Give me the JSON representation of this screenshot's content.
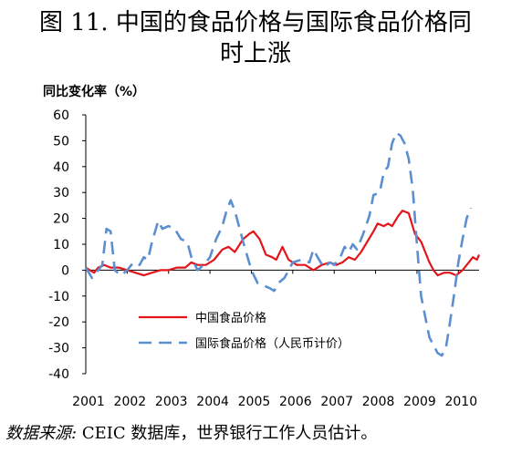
{
  "header": {
    "title_line1": "图 11. 中国的食品价格与国际食品价格同",
    "title_line2": "时上涨"
  },
  "footer": {
    "source_label": "数据来源:",
    "source_text": "CEIC 数据库，世界银行工作人员估计。"
  },
  "chart_data": {
    "type": "line",
    "ylabel": "同比变化率（%）",
    "xlabel": "",
    "ylim": [
      -40,
      60
    ],
    "yticks": [
      -40,
      -30,
      -20,
      -10,
      0,
      10,
      20,
      30,
      40,
      50,
      60
    ],
    "xlim": [
      2001.0,
      2010.5
    ],
    "xticks": [
      "2001",
      "2002",
      "2003",
      "2004",
      "2005",
      "2006",
      "2007",
      "2008",
      "2009",
      "2010"
    ],
    "grid": false,
    "legend_position": "bottom-center",
    "series": [
      {
        "name": "中国食品价格",
        "color": "#e3151a",
        "style": "solid",
        "points": [
          [
            2001.0,
            1
          ],
          [
            2001.1,
            0
          ],
          [
            2001.2,
            -1
          ],
          [
            2001.3,
            1
          ],
          [
            2001.45,
            2
          ],
          [
            2001.6,
            1
          ],
          [
            2001.8,
            1
          ],
          [
            2002.0,
            0
          ],
          [
            2002.2,
            -1
          ],
          [
            2002.4,
            -2
          ],
          [
            2002.6,
            -1
          ],
          [
            2002.8,
            0
          ],
          [
            2003.0,
            0
          ],
          [
            2003.2,
            1
          ],
          [
            2003.4,
            1
          ],
          [
            2003.55,
            3
          ],
          [
            2003.7,
            2
          ],
          [
            2003.9,
            2
          ],
          [
            2004.1,
            4
          ],
          [
            2004.3,
            8
          ],
          [
            2004.45,
            9
          ],
          [
            2004.6,
            7
          ],
          [
            2004.8,
            12
          ],
          [
            2004.95,
            14
          ],
          [
            2005.05,
            15
          ],
          [
            2005.2,
            12
          ],
          [
            2005.35,
            6
          ],
          [
            2005.5,
            5
          ],
          [
            2005.6,
            4
          ],
          [
            2005.75,
            9
          ],
          [
            2005.9,
            4
          ],
          [
            2006.1,
            2
          ],
          [
            2006.3,
            2
          ],
          [
            2006.5,
            0
          ],
          [
            2006.7,
            2
          ],
          [
            2006.9,
            3
          ],
          [
            2007.05,
            2
          ],
          [
            2007.2,
            3
          ],
          [
            2007.35,
            5
          ],
          [
            2007.5,
            4
          ],
          [
            2007.65,
            7
          ],
          [
            2007.8,
            11
          ],
          [
            2007.95,
            15
          ],
          [
            2008.05,
            18
          ],
          [
            2008.2,
            17
          ],
          [
            2008.3,
            18
          ],
          [
            2008.4,
            17
          ],
          [
            2008.55,
            21
          ],
          [
            2008.65,
            23
          ],
          [
            2008.8,
            22
          ],
          [
            2008.95,
            14
          ],
          [
            2009.1,
            11
          ],
          [
            2009.2,
            7
          ],
          [
            2009.3,
            3
          ],
          [
            2009.4,
            0
          ],
          [
            2009.5,
            -2
          ],
          [
            2009.65,
            -1
          ],
          [
            2009.8,
            -1
          ],
          [
            2009.95,
            -2
          ],
          [
            2010.1,
            0
          ],
          [
            2010.25,
            3
          ],
          [
            2010.35,
            5
          ],
          [
            2010.45,
            4
          ],
          [
            2010.5,
            6
          ]
        ]
      },
      {
        "name": "国际食品价格（人民币计价）",
        "color": "#5b8fd0",
        "style": "dashed",
        "points": [
          [
            2001.0,
            1
          ],
          [
            2001.15,
            -3
          ],
          [
            2001.3,
            0
          ],
          [
            2001.4,
            2
          ],
          [
            2001.5,
            16
          ],
          [
            2001.6,
            15
          ],
          [
            2001.7,
            0
          ],
          [
            2001.85,
            -2
          ],
          [
            2002.0,
            0
          ],
          [
            2002.15,
            3
          ],
          [
            2002.3,
            2
          ],
          [
            2002.4,
            5
          ],
          [
            2002.5,
            4
          ],
          [
            2002.6,
            11
          ],
          [
            2002.75,
            19
          ],
          [
            2002.85,
            16
          ],
          [
            2003.0,
            17
          ],
          [
            2003.15,
            16
          ],
          [
            2003.3,
            12
          ],
          [
            2003.45,
            11
          ],
          [
            2003.55,
            5
          ],
          [
            2003.7,
            0
          ],
          [
            2003.85,
            2
          ],
          [
            2004.0,
            5
          ],
          [
            2004.15,
            12
          ],
          [
            2004.3,
            17
          ],
          [
            2004.4,
            23
          ],
          [
            2004.5,
            27
          ],
          [
            2004.6,
            23
          ],
          [
            2004.7,
            17
          ],
          [
            2004.8,
            11
          ],
          [
            2005.0,
            0
          ],
          [
            2005.15,
            -5
          ],
          [
            2005.3,
            -6
          ],
          [
            2005.45,
            -7
          ],
          [
            2005.55,
            -8
          ],
          [
            2005.65,
            -5
          ],
          [
            2005.8,
            -3
          ],
          [
            2006.0,
            3
          ],
          [
            2006.2,
            4
          ],
          [
            2006.4,
            3
          ],
          [
            2006.5,
            8
          ],
          [
            2006.6,
            5
          ],
          [
            2006.75,
            1
          ],
          [
            2006.9,
            3
          ],
          [
            2007.0,
            2
          ],
          [
            2007.15,
            5
          ],
          [
            2007.25,
            9
          ],
          [
            2007.35,
            7
          ],
          [
            2007.45,
            10
          ],
          [
            2007.55,
            8
          ],
          [
            2007.7,
            14
          ],
          [
            2007.85,
            21
          ],
          [
            2007.95,
            29
          ],
          [
            2008.1,
            30
          ],
          [
            2008.2,
            38
          ],
          [
            2008.3,
            40
          ],
          [
            2008.4,
            49
          ],
          [
            2008.5,
            53
          ],
          [
            2008.6,
            52
          ],
          [
            2008.7,
            49
          ],
          [
            2008.8,
            43
          ],
          [
            2008.9,
            31
          ],
          [
            2009.0,
            10
          ],
          [
            2009.1,
            -10
          ],
          [
            2009.2,
            -18
          ],
          [
            2009.3,
            -26
          ],
          [
            2009.4,
            -29
          ],
          [
            2009.5,
            -32
          ],
          [
            2009.6,
            -33
          ],
          [
            2009.7,
            -30
          ],
          [
            2009.8,
            -20
          ],
          [
            2009.9,
            -9
          ],
          [
            2010.0,
            3
          ],
          [
            2010.1,
            12
          ],
          [
            2010.2,
            20
          ],
          [
            2010.3,
            24
          ]
        ]
      }
    ]
  }
}
